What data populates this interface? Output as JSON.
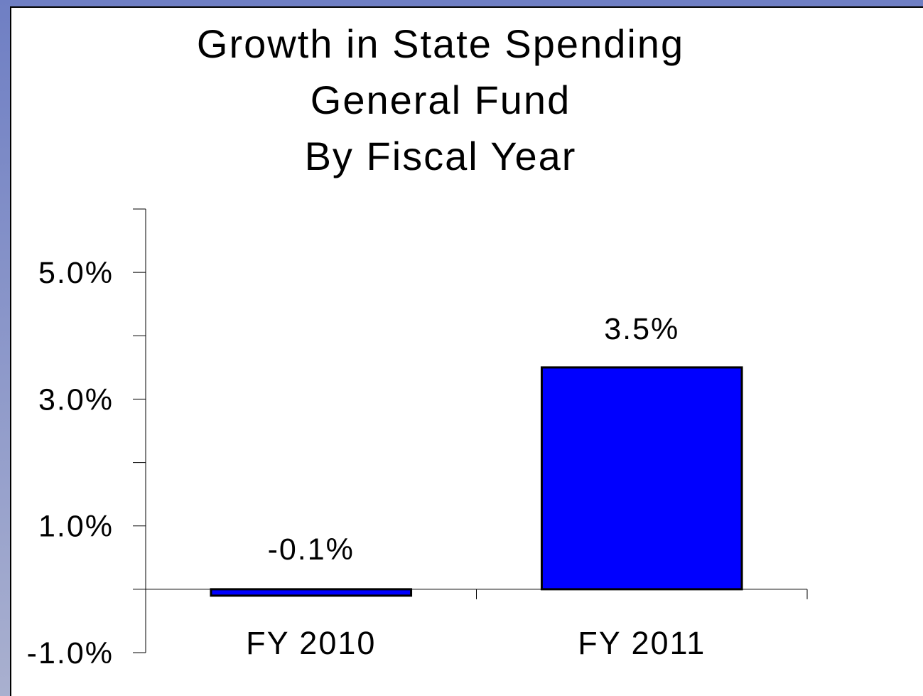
{
  "colors": {
    "background_gradient_top": "#6f7fc4",
    "background_gradient_bottom": "#a9b0cf",
    "panel": "#ffffff",
    "bar_fill": "#0000ff",
    "bar_stroke": "#000000"
  },
  "chart_data": {
    "type": "bar",
    "title_lines": [
      "Growth in State Spending",
      "General Fund",
      "By Fiscal Year"
    ],
    "categories": [
      "FY 2010",
      "FY 2011"
    ],
    "values": [
      -0.1,
      3.5
    ],
    "data_labels": [
      "-0.1%",
      "3.5%"
    ],
    "xlabel": "",
    "ylabel": "",
    "ylim": [
      -1.0,
      6.0
    ],
    "y_tick_labels": [
      {
        "value": 5.0,
        "label": "5.0%"
      },
      {
        "value": 3.0,
        "label": "3.0%"
      },
      {
        "value": 1.0,
        "label": "1.0%"
      },
      {
        "value": -1.0,
        "label": "-1.0%"
      }
    ],
    "y_minor_ticks": [
      6.0,
      4.0,
      2.0,
      0.0
    ],
    "grid": false,
    "legend": "none"
  }
}
